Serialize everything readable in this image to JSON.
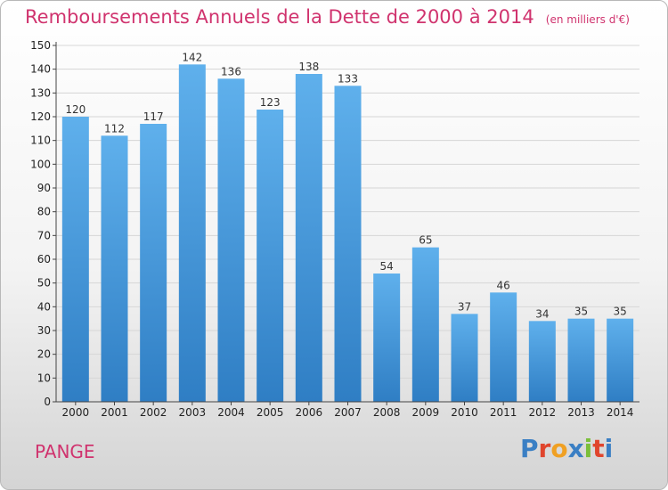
{
  "chart_data": {
    "type": "bar",
    "title": "Remboursements Annuels de la Dette de 2000 à 2014",
    "subtitle": "(en milliers d'€)",
    "categories": [
      "2000",
      "2001",
      "2002",
      "2003",
      "2004",
      "2005",
      "2006",
      "2007",
      "2008",
      "2009",
      "2010",
      "2011",
      "2012",
      "2013",
      "2014"
    ],
    "values": [
      120,
      112,
      117,
      142,
      136,
      123,
      138,
      133,
      54,
      65,
      37,
      46,
      34,
      35,
      35
    ],
    "ylim": [
      0,
      150
    ],
    "yticks": [
      0,
      10,
      20,
      30,
      40,
      50,
      60,
      70,
      80,
      90,
      100,
      110,
      120,
      130,
      140,
      150
    ],
    "grid": true,
    "bar_color": "#4a9ad8",
    "title_color": "#d0336e"
  },
  "place_name": "PANGE",
  "logo": {
    "text": "Proxiti",
    "letters": [
      "P",
      "r",
      "o",
      "x",
      "i",
      "t",
      "i"
    ],
    "colors": [
      "#3a7fc4",
      "#e0452d",
      "#f0a023",
      "#3a7fc4",
      "#7bbf3a",
      "#e0452d",
      "#3a7fc4"
    ]
  }
}
